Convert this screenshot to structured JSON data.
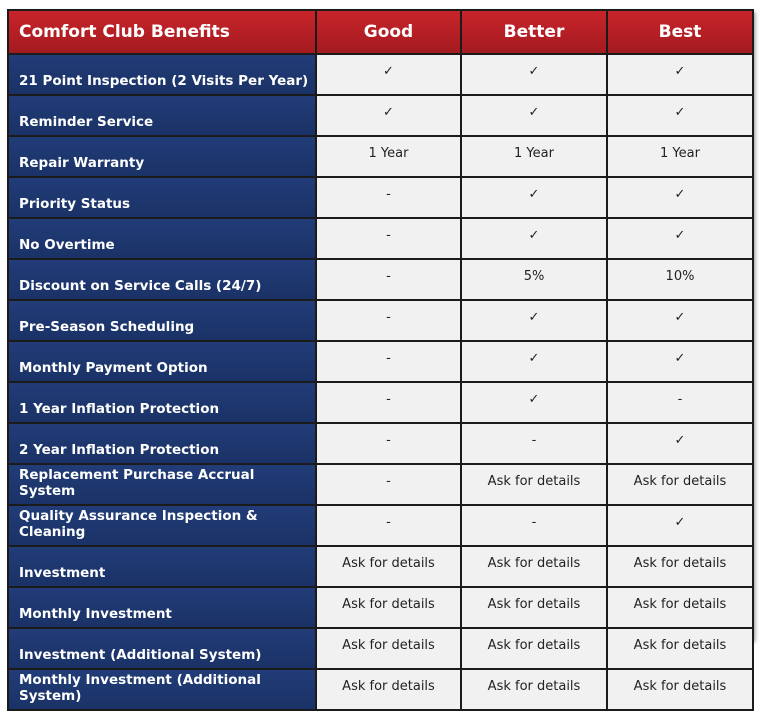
{
  "table": {
    "headers": [
      "Comfort Club Benefits",
      "Good",
      "Better",
      "Best"
    ],
    "rows": [
      {
        "label": "21 Point Inspection (2 Visits Per Year)",
        "good": "✓",
        "better": "✓",
        "best": "✓"
      },
      {
        "label": "Reminder Service",
        "good": "✓",
        "better": "✓",
        "best": "✓"
      },
      {
        "label": "Repair Warranty",
        "good": "1 Year",
        "better": "1 Year",
        "best": "1 Year"
      },
      {
        "label": "Priority Status",
        "good": "-",
        "better": "✓",
        "best": "✓"
      },
      {
        "label": "No Overtime",
        "good": "-",
        "better": "✓",
        "best": "✓"
      },
      {
        "label": "Discount on Service Calls (24/7)",
        "good": "-",
        "better": "5%",
        "best": "10%"
      },
      {
        "label": "Pre-Season Scheduling",
        "good": "-",
        "better": "✓",
        "best": "✓"
      },
      {
        "label": "Monthly Payment Option",
        "good": "-",
        "better": "✓",
        "best": "✓"
      },
      {
        "label": "1 Year Inflation Protection",
        "good": "-",
        "better": "✓",
        "best": "-"
      },
      {
        "label": "2 Year Inflation Protection",
        "good": "-",
        "better": "-",
        "best": "✓"
      },
      {
        "label": "Replacement Purchase Accrual System",
        "good": "-",
        "better": "Ask for details",
        "best": "Ask for details"
      },
      {
        "label": "Quality Assurance Inspection & Cleaning",
        "good": "-",
        "better": "-",
        "best": "✓"
      },
      {
        "label": "Investment",
        "good": "Ask for details",
        "better": "Ask for details",
        "best": "Ask for details"
      },
      {
        "label": "Monthly Investment",
        "good": "Ask for details",
        "better": "Ask for details",
        "best": "Ask for details"
      },
      {
        "label": "Investment (Additional System)",
        "good": "Ask for details",
        "better": "Ask for details",
        "best": "Ask for details"
      },
      {
        "label": "Monthly Investment (Additional System)",
        "good": "Ask for details",
        "better": "Ask for details",
        "best": "Ask for details"
      }
    ]
  },
  "colors": {
    "header_red": "#b71f24",
    "label_blue": "#1d3670",
    "cell_bg": "#f1f1f1",
    "border": "#1b1b1b"
  }
}
